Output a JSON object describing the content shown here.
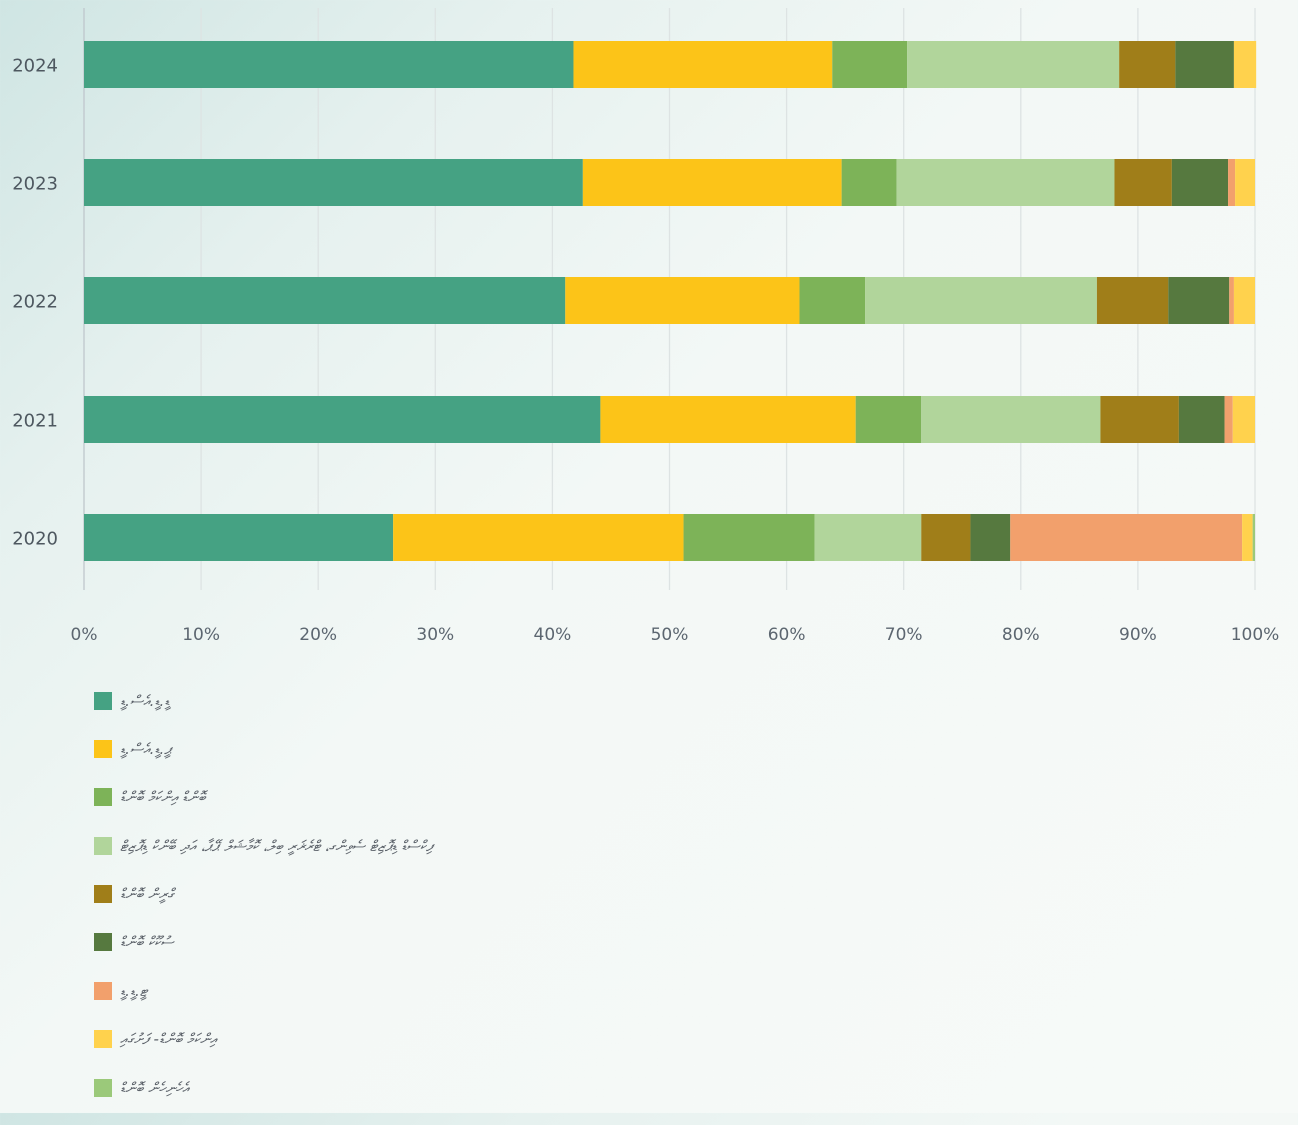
{
  "chart_data": {
    "type": "bar",
    "orientation": "horizontal",
    "stacked": true,
    "categories": [
      "2024",
      "2023",
      "2022",
      "2021",
      "2020"
    ],
    "xlim": [
      0,
      100
    ],
    "x_ticks": [
      "0%",
      "10%",
      "20%",
      "30%",
      "40%",
      "50%",
      "60%",
      "70%",
      "80%",
      "90%",
      "100%"
    ],
    "grid": "vertical",
    "legend_position": "bottom-left",
    "series": [
      {
        "name": "ޑީ.ޑީ.އެސް.ޑީ",
        "color": "#45a283",
        "values": [
          41.8,
          42.6,
          41.1,
          44.1,
          26.4
        ]
      },
      {
        "name": "ޕީ.ޑީ.އެސް.ޑީ",
        "color": "#fcc418",
        "values": [
          22.1,
          22.1,
          20.0,
          21.8,
          24.8
        ]
      },
      {
        "name": "ބޮންޑް އިންކަމް ބޮންޑް",
        "color": "#7db358",
        "values": [
          6.4,
          4.7,
          5.6,
          5.6,
          11.2
        ]
      },
      {
        "name": "ފިކްސްޑް ޑިޕޮޒިޓް ސެވިންގ، ޓްރެޜަރީ ބިލް، ކޮމާޝަލް ޕޭޕާ، އަދި ބޭންކް ޑިޕޮޒިޓް",
        "color": "#b1d59b",
        "values": [
          18.1,
          18.6,
          19.8,
          15.3,
          9.1
        ]
      },
      {
        "name": "ގްރީން ބޮންޑް",
        "color": "#a07e19",
        "values": [
          4.8,
          4.9,
          6.1,
          6.7,
          4.2
        ]
      },
      {
        "name": "ސުކޫކް ބޮންޑް",
        "color": "#56793f",
        "values": [
          5.0,
          4.8,
          5.2,
          3.9,
          3.4
        ]
      },
      {
        "name": "ޓީ.ޑީ.ޑީ",
        "color": "#f2a06c",
        "values": [
          0.0,
          0.6,
          0.4,
          0.7,
          19.8
        ]
      },
      {
        "name": "އިންކަމް ބޮންޑް- ފަށުގައި",
        "color": "#ffd24d",
        "values": [
          1.9,
          1.7,
          1.8,
          1.9,
          0.9
        ]
      },
      {
        "name": "އެހެނިހެން ބޮންޑް",
        "color": "#9bc97a",
        "values": [
          0.0,
          0.0,
          0.0,
          0.0,
          0.2
        ]
      }
    ]
  }
}
